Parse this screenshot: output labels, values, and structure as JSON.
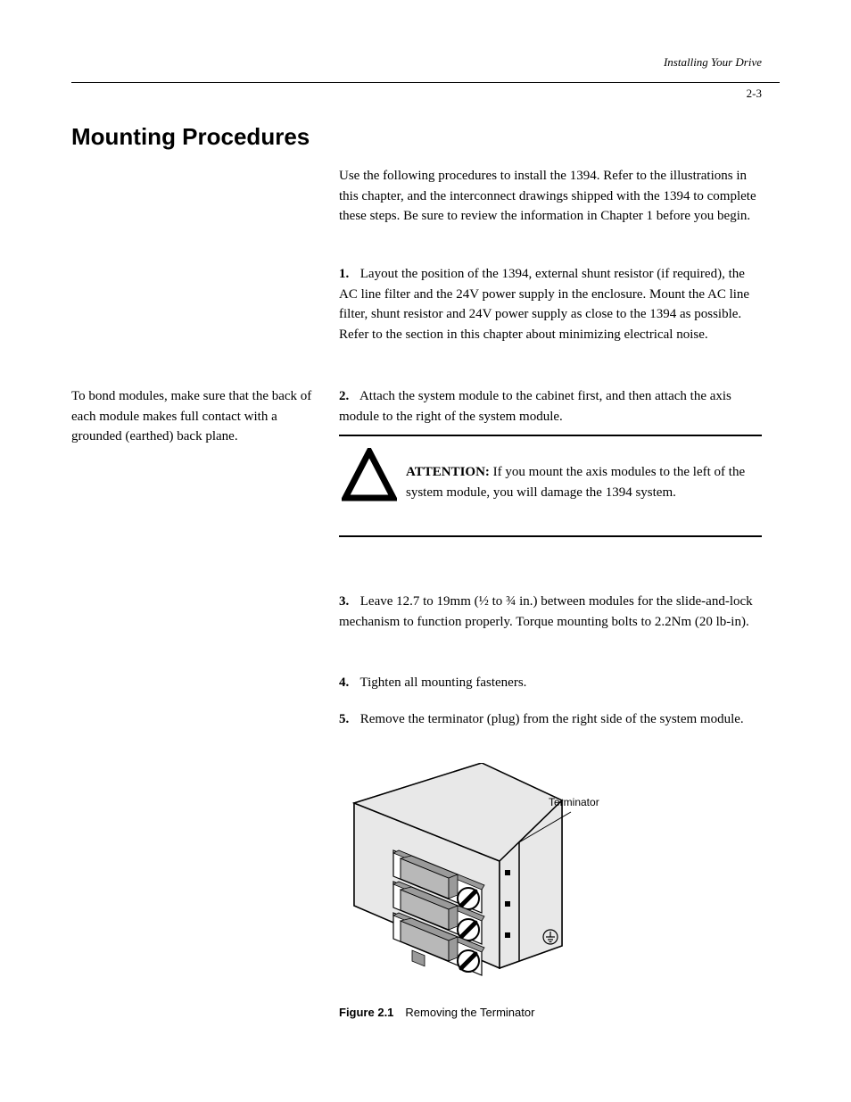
{
  "header": {
    "subtitle": "Installing Your Drive",
    "page": "2-3"
  },
  "sectionTitle": "Mounting Procedures",
  "intro": "Use the following procedures to install the 1394. Refer to the illustrations in this chapter, and the interconnect drawings shipped with the 1394 to complete these steps. Be sure to review the information in Chapter 1 before you begin.",
  "steps": {
    "s1": {
      "num": "1.",
      "text": "Layout the position of the 1394, external shunt resistor (if required), the AC line filter and the 24V power supply in the enclosure. Mount the AC line filter, shunt resistor and 24V power supply as close to the 1394 as possible. Refer to the section in this chapter about minimizing electrical noise."
    },
    "s2": {
      "num": "2.",
      "text": "Attach the system module to the cabinet first, and then attach the axis module to the right of the system module."
    }
  },
  "caution": {
    "label": "ATTENTION:",
    "text": " If you mount the axis modules to the left of the system module, you will damage the 1394 system."
  },
  "postCaution": {
    "s3": {
      "num": "3.",
      "text": "Leave 12.7 to 19mm (",
      "frac1": "½",
      "mid": " to ",
      "frac2": "¾",
      "textAfter": " in.) between modules for the slide-and-lock mechanism to function properly. Torque mounting bolts to 2.2Nm (20 lb-in)."
    },
    "s4": {
      "num": "4.",
      "text": "Tighten all mounting fasteners."
    },
    "s5": {
      "num": "5.",
      "text": "Remove the terminator (plug) from the right side of the system module."
    }
  },
  "sidebar": "To bond modules, make sure that the back of each module makes full contact with a grounded (earthed) back plane.",
  "terminatorLabel": "Terminator",
  "figureCaption": "Figure 2.1 Removing the Terminator",
  "colors": {
    "lightFill": "#e8e8e8",
    "midFill": "#b8b8b8",
    "darkFill": "#9a9a9a",
    "stroke": "#000000",
    "white": "#ffffff"
  }
}
